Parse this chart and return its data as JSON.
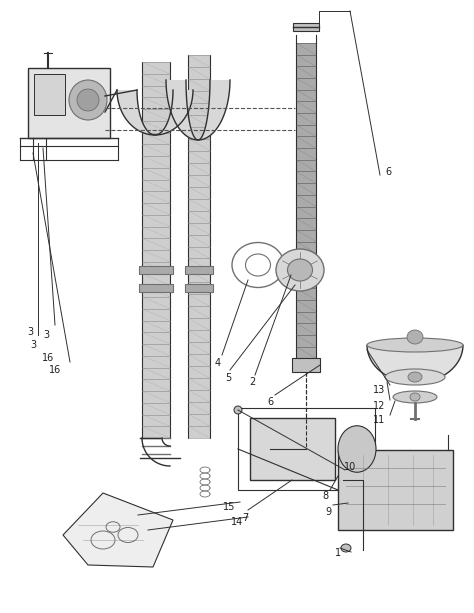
{
  "background_color": "#ffffff",
  "fig_width": 4.74,
  "fig_height": 6.13,
  "dpi": 100,
  "line_color": "#303030",
  "gray_light": "#d8d8d8",
  "gray_mid": "#aaaaaa",
  "gray_dark": "#707070",
  "text_color": "#202020",
  "annotation_fontsize": 7.0,
  "hose_fill": "#c8c8c8",
  "hose_ring": "#909090",
  "component_fill": "#e0e0e0",
  "dashed_line_color": "#505050"
}
